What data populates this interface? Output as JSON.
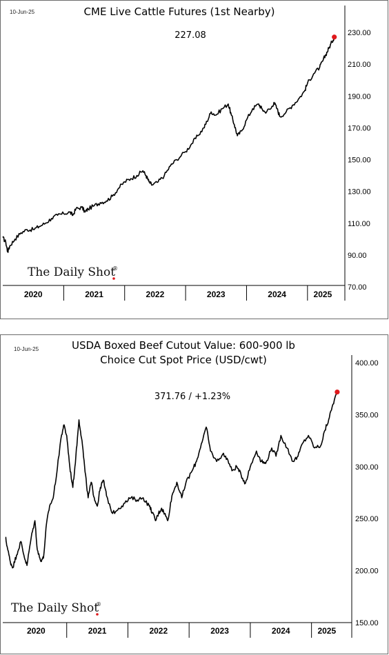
{
  "brand": {
    "name": "The Daily Shot",
    "mark": "®"
  },
  "chart_data": [
    {
      "type": "line",
      "date": "10-Jun-25",
      "title": "CME Live Cattle Futures (1st Nearby)",
      "subtitle": "",
      "last_value_label": "227.08",
      "series": [
        {
          "values": [
            [
              2020.0,
              101
            ],
            [
              2020.05,
              98
            ],
            [
              2020.08,
              92
            ],
            [
              2020.12,
              96
            ],
            [
              2020.2,
              100
            ],
            [
              2020.3,
              104
            ],
            [
              2020.4,
              106
            ],
            [
              2020.5,
              106
            ],
            [
              2020.6,
              108
            ],
            [
              2020.7,
              110
            ],
            [
              2020.8,
              113
            ],
            [
              2020.9,
              115
            ],
            [
              2021.0,
              116
            ],
            [
              2021.1,
              117
            ],
            [
              2021.15,
              115
            ],
            [
              2021.2,
              119
            ],
            [
              2021.3,
              120
            ],
            [
              2021.35,
              117
            ],
            [
              2021.4,
              119
            ],
            [
              2021.5,
              121
            ],
            [
              2021.6,
              123
            ],
            [
              2021.7,
              124
            ],
            [
              2021.8,
              127
            ],
            [
              2021.9,
              132
            ],
            [
              2022.0,
              136
            ],
            [
              2022.1,
              138
            ],
            [
              2022.2,
              140
            ],
            [
              2022.3,
              143
            ],
            [
              2022.35,
              140
            ],
            [
              2022.4,
              136
            ],
            [
              2022.45,
              134
            ],
            [
              2022.55,
              136
            ],
            [
              2022.65,
              140
            ],
            [
              2022.75,
              146
            ],
            [
              2022.85,
              150
            ],
            [
              2023.0,
              155
            ],
            [
              2023.1,
              160
            ],
            [
              2023.2,
              165
            ],
            [
              2023.3,
              170
            ],
            [
              2023.35,
              174
            ],
            [
              2023.42,
              180
            ],
            [
              2023.5,
              178
            ],
            [
              2023.6,
              182
            ],
            [
              2023.7,
              185
            ],
            [
              2023.75,
              178
            ],
            [
              2023.8,
              172
            ],
            [
              2023.85,
              165
            ],
            [
              2023.92,
              168
            ],
            [
              2024.0,
              175
            ],
            [
              2024.1,
              182
            ],
            [
              2024.2,
              185
            ],
            [
              2024.25,
              182
            ],
            [
              2024.3,
              180
            ],
            [
              2024.4,
              182
            ],
            [
              2024.45,
              186
            ],
            [
              2024.5,
              182
            ],
            [
              2024.55,
              177
            ],
            [
              2024.65,
              180
            ],
            [
              2024.75,
              184
            ],
            [
              2024.85,
              188
            ],
            [
              2024.95,
              193
            ],
            [
              2025.0,
              198
            ],
            [
              2025.1,
              204
            ],
            [
              2025.2,
              208
            ],
            [
              2025.25,
              212
            ],
            [
              2025.3,
              216
            ],
            [
              2025.35,
              220
            ],
            [
              2025.4,
              224
            ],
            [
              2025.44,
              227.08
            ]
          ]
        }
      ],
      "x_ticks": [
        "2020",
        "2021",
        "2022",
        "2023",
        "2024",
        "2025"
      ],
      "y_ticks": [
        "70.00",
        "90.00",
        "110.00",
        "130.00",
        "150.00",
        "170.00",
        "190.00",
        "210.00",
        "230.00"
      ],
      "xlim": [
        2020,
        2025.5
      ],
      "ylim": [
        70,
        230
      ],
      "grid": false,
      "last_point_color": "#e0191c",
      "line_color": "#000000"
    },
    {
      "type": "line",
      "date": "10-Jun-25",
      "title": "USDA Boxed Beef Cutout Value: 600-900 lb",
      "subtitle": "Choice Cut Spot Price (USD/cwt)",
      "last_value_label": "371.76  /  +1.23%",
      "series": [
        {
          "values": [
            [
              2020.0,
              232
            ],
            [
              2020.03,
              222
            ],
            [
              2020.08,
              208
            ],
            [
              2020.12,
              203
            ],
            [
              2020.18,
              215
            ],
            [
              2020.25,
              228
            ],
            [
              2020.3,
              215
            ],
            [
              2020.35,
              205
            ],
            [
              2020.42,
              232
            ],
            [
              2020.48,
              248
            ],
            [
              2020.52,
              220
            ],
            [
              2020.57,
              210
            ],
            [
              2020.62,
              212
            ],
            [
              2020.67,
              245
            ],
            [
              2020.72,
              262
            ],
            [
              2020.78,
              270
            ],
            [
              2020.85,
              300
            ],
            [
              2020.9,
              325
            ],
            [
              2020.95,
              340
            ],
            [
              2021.0,
              330
            ],
            [
              2021.05,
              300
            ],
            [
              2021.1,
              280
            ],
            [
              2021.15,
              310
            ],
            [
              2021.2,
              345
            ],
            [
              2021.25,
              325
            ],
            [
              2021.3,
              295
            ],
            [
              2021.35,
              270
            ],
            [
              2021.4,
              285
            ],
            [
              2021.45,
              270
            ],
            [
              2021.5,
              262
            ],
            [
              2021.55,
              280
            ],
            [
              2021.6,
              287
            ],
            [
              2021.65,
              272
            ],
            [
              2021.75,
              255
            ],
            [
              2021.85,
              260
            ],
            [
              2021.95,
              265
            ],
            [
              2022.05,
              270
            ],
            [
              2022.15,
              268
            ],
            [
              2022.25,
              270
            ],
            [
              2022.35,
              262
            ],
            [
              2022.4,
              256
            ],
            [
              2022.45,
              248
            ],
            [
              2022.5,
              255
            ],
            [
              2022.55,
              260
            ],
            [
              2022.6,
              255
            ],
            [
              2022.65,
              248
            ],
            [
              2022.72,
              272
            ],
            [
              2022.8,
              285
            ],
            [
              2022.88,
              270
            ],
            [
              2022.95,
              285
            ],
            [
              2023.05,
              296
            ],
            [
              2023.12,
              305
            ],
            [
              2023.2,
              322
            ],
            [
              2023.28,
              338
            ],
            [
              2023.35,
              315
            ],
            [
              2023.45,
              305
            ],
            [
              2023.55,
              312
            ],
            [
              2023.62,
              308
            ],
            [
              2023.7,
              296
            ],
            [
              2023.78,
              300
            ],
            [
              2023.85,
              292
            ],
            [
              2023.92,
              284
            ],
            [
              2024.0,
              300
            ],
            [
              2024.1,
              315
            ],
            [
              2024.18,
              305
            ],
            [
              2024.25,
              303
            ],
            [
              2024.35,
              318
            ],
            [
              2024.42,
              310
            ],
            [
              2024.5,
              330
            ],
            [
              2024.6,
              318
            ],
            [
              2024.7,
              305
            ],
            [
              2024.78,
              310
            ],
            [
              2024.85,
              322
            ],
            [
              2024.95,
              330
            ],
            [
              2025.05,
              318
            ],
            [
              2025.15,
              320
            ],
            [
              2025.22,
              335
            ],
            [
              2025.28,
              345
            ],
            [
              2025.35,
              360
            ],
            [
              2025.42,
              371.76
            ]
          ]
        }
      ],
      "x_ticks": [
        "2020",
        "2021",
        "2022",
        "2023",
        "2024",
        "2025"
      ],
      "y_ticks": [
        "150.00",
        "200.00",
        "250.00",
        "300.00",
        "350.00",
        "400.00"
      ],
      "xlim": [
        2020,
        2025.5
      ],
      "ylim": [
        150,
        400
      ],
      "grid": false,
      "last_point_color": "#e0191c",
      "line_color": "#000000"
    }
  ]
}
